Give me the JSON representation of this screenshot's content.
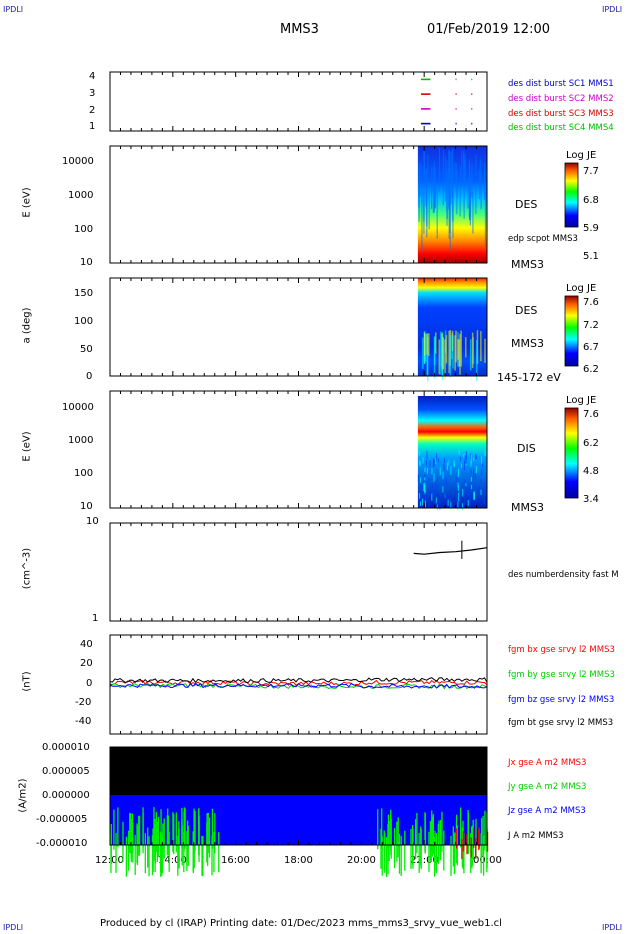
{
  "corners": {
    "tl": "IPDLI",
    "tr": "IPDLI",
    "bl": "IPDLI",
    "br": "IPDLI"
  },
  "header": {
    "spacecraft": "MMS3",
    "date": "01/Feb/2019 12:00"
  },
  "footer": "Produced by cl (IRAP)   Printing date: 01/Dec/2023   mms_mms3_srvy_vue_web1.cl",
  "colors": {
    "mms1": "#0000cc",
    "mms2": "#cc00cc",
    "mms3": "#dd0000",
    "mms4": "#00bb00",
    "bx": "#ff0000",
    "by": "#00cc00",
    "bz": "#0000ff",
    "bt": "#000000"
  },
  "chart_data": [
    {
      "type": "scatter",
      "panel": "burst",
      "ylabel": "",
      "ylim": [
        0.5,
        4.5
      ],
      "yticks": [
        "1",
        "2",
        "3",
        "4"
      ],
      "series": [
        {
          "name": "des dist burst SC1 MMS1",
          "level": 1
        },
        {
          "name": "des dist burst SC2 MMS2",
          "level": 2
        },
        {
          "name": "des dist burst SC3 MMS3",
          "level": 3
        },
        {
          "name": "des dist burst SC4 MMS4",
          "level": 4
        }
      ]
    },
    {
      "type": "heatmap",
      "panel": "des-energy",
      "ylabel": "E (eV)",
      "yscale": "log",
      "ylim": [
        10,
        30000
      ],
      "yticks": [
        "10",
        "100",
        "1000",
        "10000"
      ],
      "labels": [
        "DES",
        "edp scpot MMS3",
        "MMS3"
      ],
      "colorbar": {
        "title": "Log JE",
        "ticks": [
          "7.7",
          "6.8",
          "5.9",
          "5.1"
        ]
      }
    },
    {
      "type": "heatmap",
      "panel": "des-pitch",
      "ylabel": "a (deg)",
      "ylim": [
        0,
        180
      ],
      "yticks": [
        "0",
        "50",
        "100",
        "150"
      ],
      "labels": [
        "DES",
        "MMS3",
        "145-172 eV"
      ],
      "colorbar": {
        "title": "Log JE",
        "ticks": [
          "7.6",
          "7.2",
          "6.7",
          "6.2"
        ]
      }
    },
    {
      "type": "heatmap",
      "panel": "dis-energy",
      "ylabel": "E (eV)",
      "yscale": "log",
      "ylim": [
        10,
        30000
      ],
      "yticks": [
        "10",
        "100",
        "1000",
        "10000"
      ],
      "labels": [
        "DIS",
        "MMS3"
      ],
      "colorbar": {
        "title": "Log JE",
        "ticks": [
          "7.6",
          "6.2",
          "4.8",
          "3.4"
        ]
      }
    },
    {
      "type": "line",
      "panel": "density",
      "ylabel": "(cm^-3)",
      "yscale": "log",
      "ylim": [
        1,
        10
      ],
      "yticks": [
        "1",
        "10"
      ],
      "series": [
        {
          "name": "des numberdensity fast M",
          "x": [
            "21:40",
            "22:00",
            "22:30",
            "23:00",
            "23:30",
            "00:00"
          ],
          "y": [
            4.9,
            4.8,
            5.0,
            5.1,
            5.3,
            5.6
          ]
        }
      ]
    },
    {
      "type": "line",
      "panel": "magnetic-field",
      "ylabel": "(nT)",
      "ylim": [
        -50,
        50
      ],
      "yticks": [
        "40",
        "20",
        "0",
        "-20",
        "-40"
      ],
      "series": [
        {
          "name": "fgm bx gse srvy l2 MMS3",
          "x": [
            "12:00",
            "16:00",
            "20:00",
            "00:00"
          ],
          "y": [
            2,
            1,
            2,
            1
          ]
        },
        {
          "name": "fgm by gse srvy l2 MMS3",
          "x": [
            "12:00",
            "16:00",
            "20:00",
            "00:00"
          ],
          "y": [
            -1,
            -2,
            -2,
            -3
          ]
        },
        {
          "name": "fgm bz gse srvy l2 MMS3",
          "x": [
            "12:00",
            "16:00",
            "20:00",
            "00:00"
          ],
          "y": [
            -1,
            -1,
            -2,
            -1
          ]
        },
        {
          "name": "fgm bt gse srvy l2 MMS3",
          "x": [
            "12:00",
            "16:00",
            "20:00",
            "00:00"
          ],
          "y": [
            4,
            4,
            5,
            4
          ]
        }
      ]
    },
    {
      "type": "area",
      "panel": "current",
      "ylabel": "(A/m2)",
      "ylim": [
        -1e-05,
        1e-05
      ],
      "yticks": [
        "0.000010",
        "0.000005",
        "0.000000",
        "-0.000005",
        "-0.000010"
      ],
      "xticks": [
        "12:00",
        "14:00",
        "16:00",
        "18:00",
        "20:00",
        "22:00",
        "00:00"
      ],
      "series": [
        {
          "name": "Jx gse A m2 MMS3"
        },
        {
          "name": "Jy gse A m2 MMS3"
        },
        {
          "name": "Jz gse A m2 MMS3"
        },
        {
          "name": "J A m2 MMS3"
        }
      ]
    }
  ]
}
